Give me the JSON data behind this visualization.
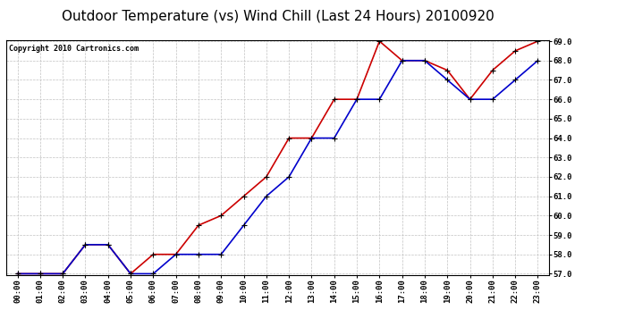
{
  "title": "Outdoor Temperature (vs) Wind Chill (Last 24 Hours) 20100920",
  "copyright": "Copyright 2010 Cartronics.com",
  "hours": [
    "00:00",
    "01:00",
    "02:00",
    "03:00",
    "04:00",
    "05:00",
    "06:00",
    "07:00",
    "08:00",
    "09:00",
    "10:00",
    "11:00",
    "12:00",
    "13:00",
    "14:00",
    "15:00",
    "16:00",
    "17:00",
    "18:00",
    "19:00",
    "20:00",
    "21:00",
    "22:00",
    "23:00"
  ],
  "temp": [
    57.0,
    57.0,
    57.0,
    58.5,
    58.5,
    57.0,
    58.0,
    58.0,
    59.5,
    60.0,
    61.0,
    62.0,
    64.0,
    64.0,
    66.0,
    66.0,
    69.0,
    68.0,
    68.0,
    67.5,
    66.0,
    67.5,
    68.5,
    69.0
  ],
  "windchill": [
    57.0,
    57.0,
    57.0,
    58.5,
    58.5,
    57.0,
    57.0,
    58.0,
    58.0,
    58.0,
    59.5,
    61.0,
    62.0,
    64.0,
    64.0,
    66.0,
    66.0,
    68.0,
    68.0,
    67.0,
    66.0,
    66.0,
    67.0,
    68.0
  ],
  "temp_color": "#cc0000",
  "windchill_color": "#0000cc",
  "marker": "+",
  "markersize": 5,
  "linewidth": 1.2,
  "ylim_min": 57.0,
  "ylim_max": 69.0,
  "yticks": [
    57.0,
    58.0,
    59.0,
    60.0,
    61.0,
    62.0,
    63.0,
    64.0,
    65.0,
    66.0,
    67.0,
    68.0,
    69.0
  ],
  "bg_color": "#ffffff",
  "grid_color": "#bbbbbb",
  "title_fontsize": 11,
  "tick_fontsize": 6.5,
  "copyright_fontsize": 6
}
